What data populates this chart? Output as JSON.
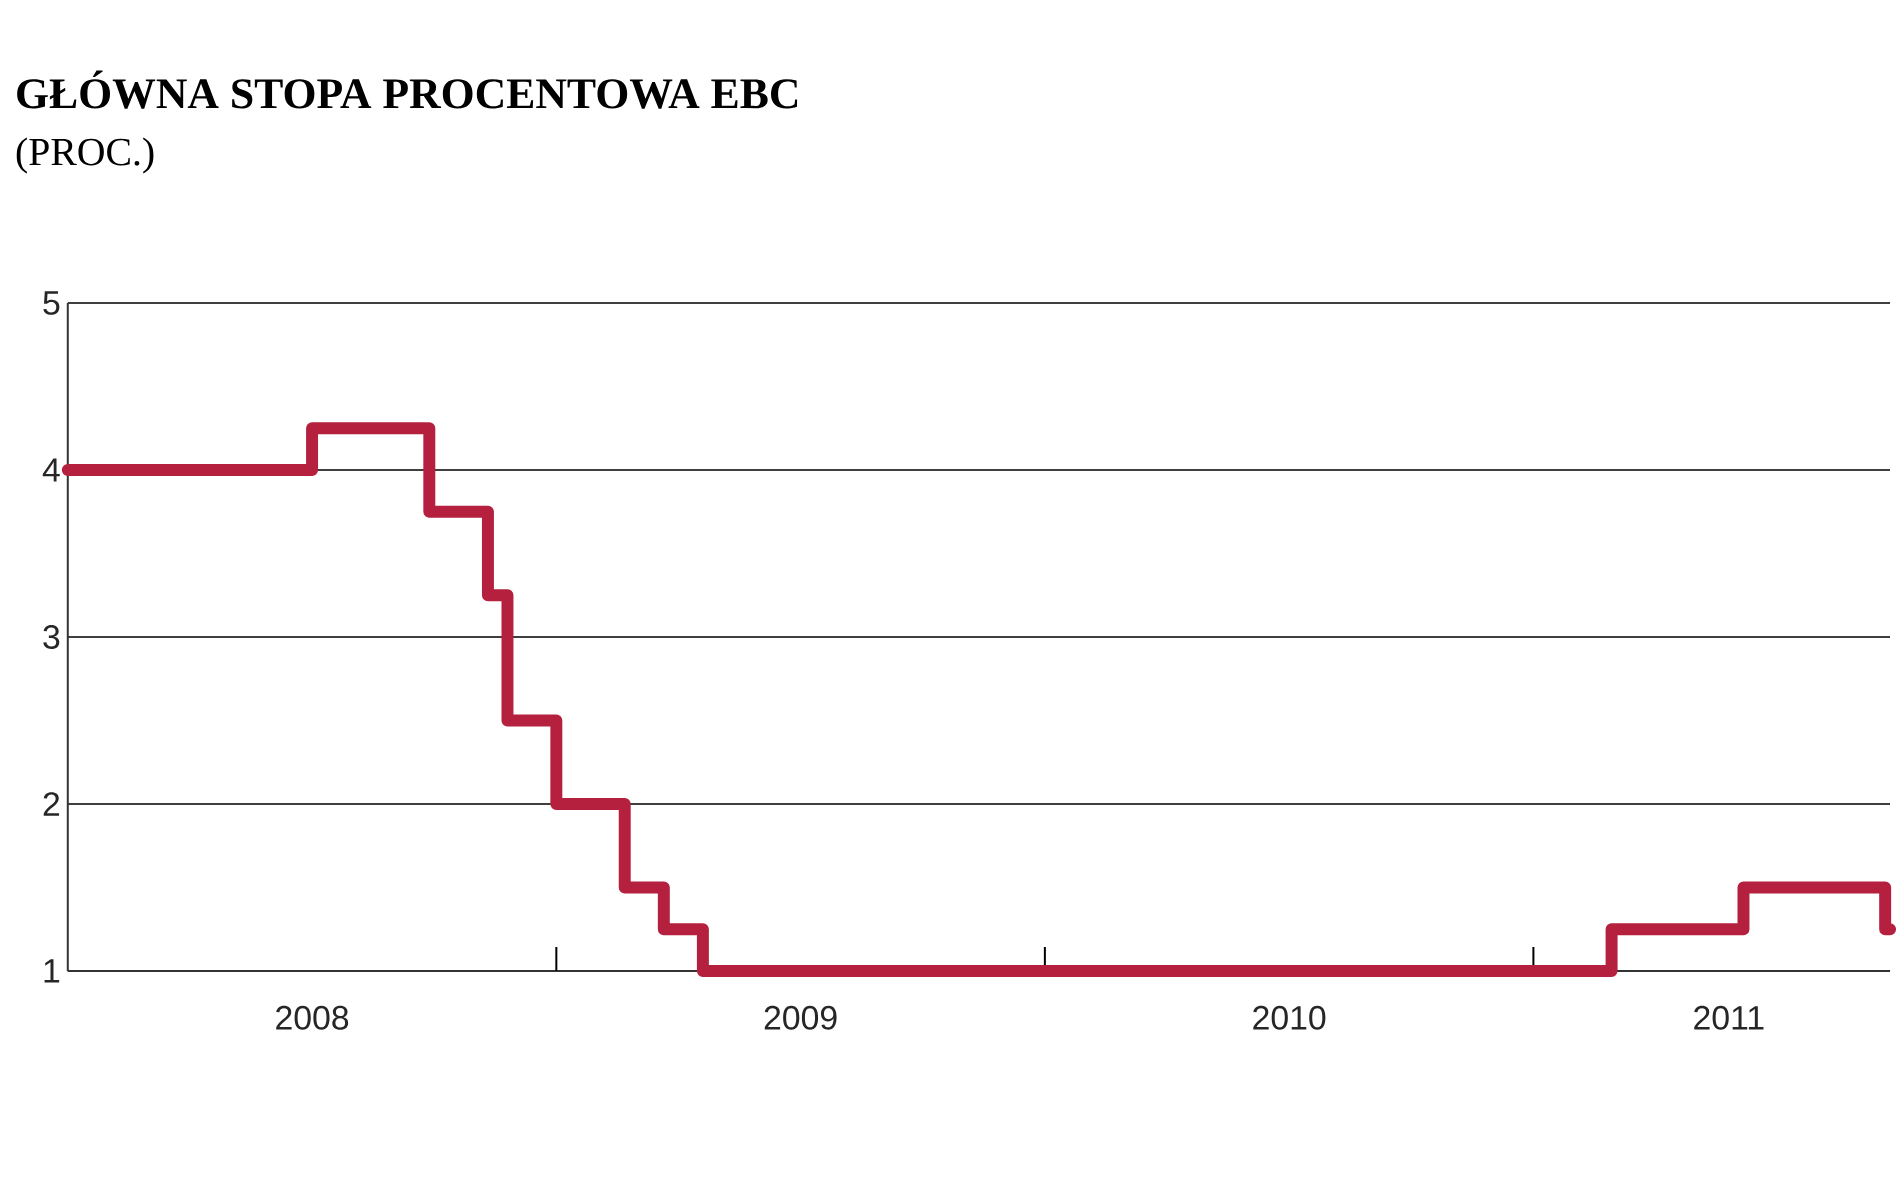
{
  "chart_data": {
    "type": "step",
    "title": "GŁÓWNA STOPA PROCENTOWA EBC",
    "subtitle": "(PROC.)",
    "x": [
      2008,
      2008.5,
      2008.74,
      2008.86,
      2008.9,
      2009,
      2009.14,
      2009.22,
      2009.3,
      2011.16,
      2011.43,
      2011.72,
      2011.73
    ],
    "series": [
      {
        "color": "#b5203f",
        "values": [
          4,
          4.25,
          3.75,
          3.25,
          2.5,
          2,
          1.5,
          1.25,
          1,
          1.25,
          1.5,
          1.25,
          1.25
        ]
      }
    ],
    "xlim": [
      2008,
      2011.73
    ],
    "xticks": [
      {
        "value": 2008.5,
        "label": "2008"
      },
      {
        "value": 2009,
        "label": null
      },
      {
        "value": 2009.5,
        "label": "2009"
      },
      {
        "value": 2010,
        "label": null
      },
      {
        "value": 2010.5,
        "label": "2010"
      },
      {
        "value": 2011,
        "label": null
      },
      {
        "value": 2011.4,
        "label": "2011"
      }
    ],
    "ylim": [
      1,
      5
    ],
    "yticks": [
      1,
      2,
      3,
      4,
      5
    ],
    "grid": "y",
    "line_style": "solid",
    "marker": "none"
  }
}
